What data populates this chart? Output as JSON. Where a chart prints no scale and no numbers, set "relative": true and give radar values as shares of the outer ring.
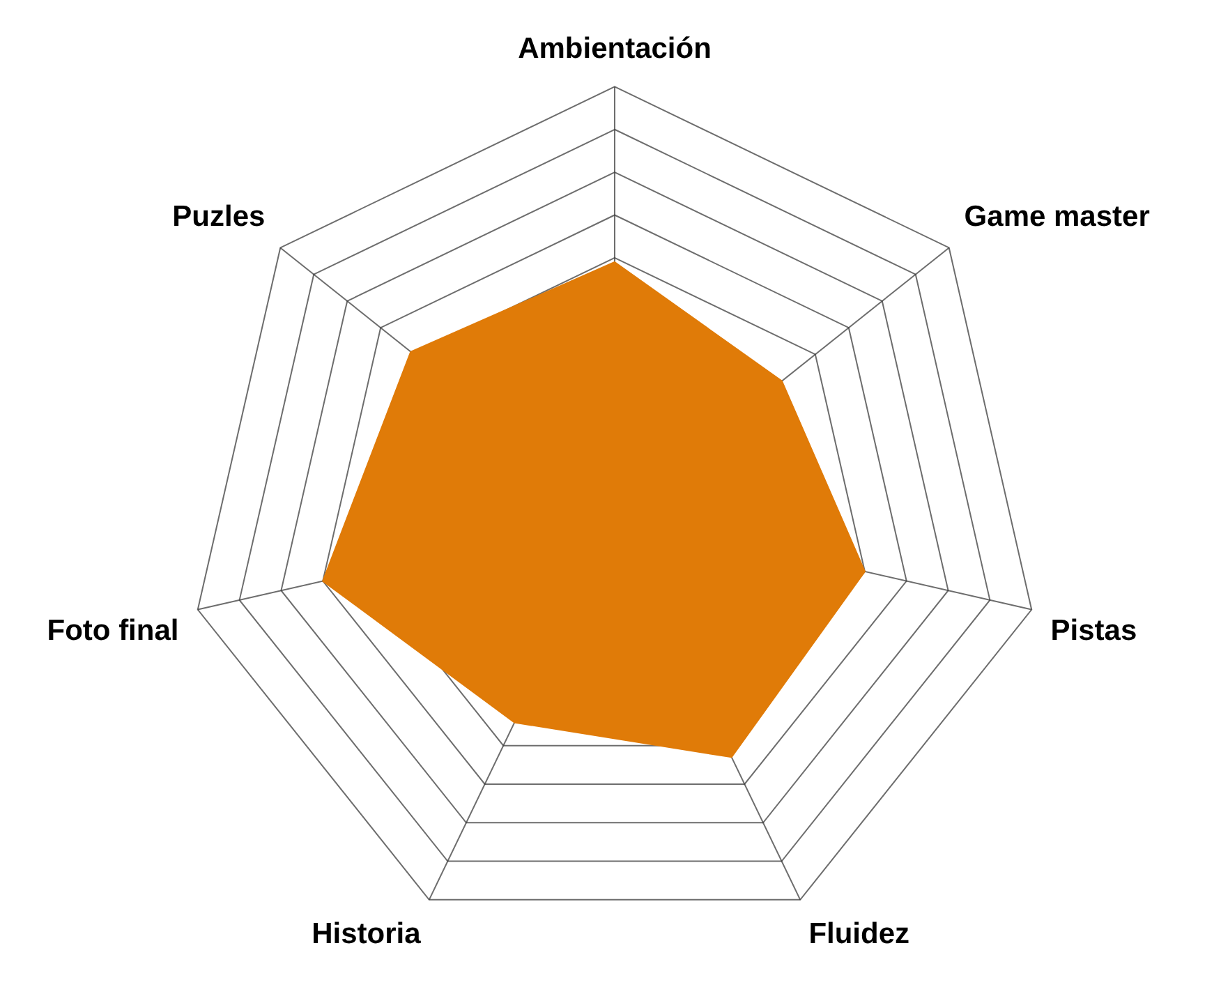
{
  "chart_data": {
    "type": "radar",
    "relative": true,
    "categories": [
      "Ambientación",
      "Game master",
      "Pistas",
      "Fluidez",
      "Historia",
      "Foto final",
      "Puzles"
    ],
    "series": [
      {
        "color": "#e07b08",
        "values": [
          0.59,
          0.5,
          0.6,
          0.63,
          0.54,
          0.7,
          0.61
        ]
      }
    ],
    "grid": true,
    "legend": false,
    "marker": "none"
  }
}
